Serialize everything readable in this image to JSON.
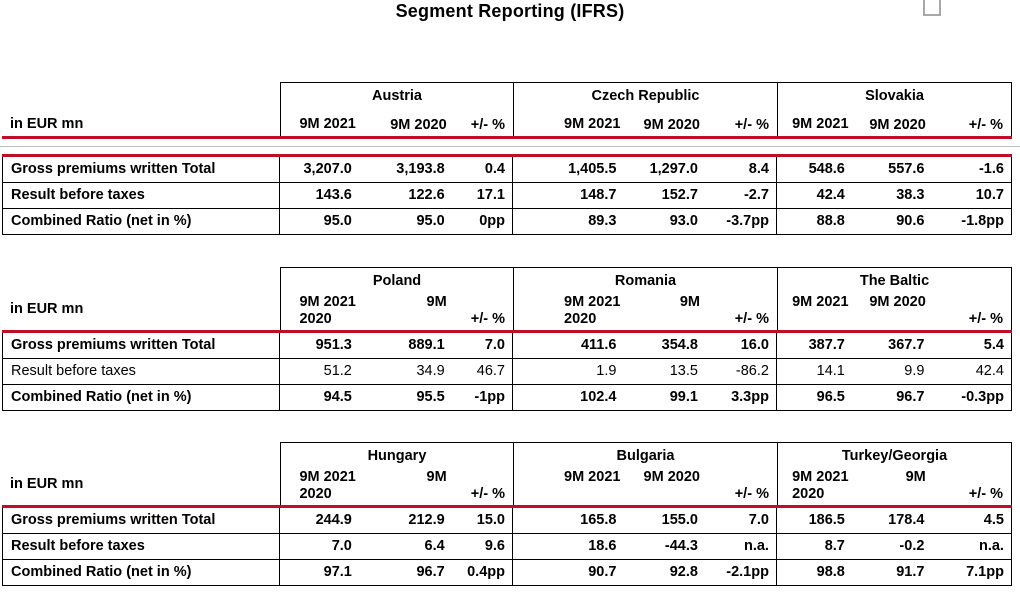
{
  "page": {
    "title": "Segment Reporting (IFRS)",
    "unit_label": "in EUR mn"
  },
  "row_labels": [
    "Gross premiums written Total",
    "Result before taxes",
    "Combined Ratio (net in %)"
  ],
  "tables": [
    {
      "groups": [
        {
          "name": "Austria",
          "p1": "9M 2021",
          "p1b": "",
          "p2": "9M 2020",
          "p3": "+/- %",
          "rows": [
            [
              "3,207.0",
              "3,193.8",
              "0.4"
            ],
            [
              "143.6",
              "122.6",
              "17.1"
            ],
            [
              "95.0",
              "95.0",
              "0pp"
            ]
          ]
        },
        {
          "name": "Czech Republic",
          "p1": "9M 2021",
          "p1b": "",
          "p2": "9M 2020",
          "p3": "+/- %",
          "rows": [
            [
              "1,405.5",
              "1,297.0",
              "8.4"
            ],
            [
              "148.7",
              "152.7",
              "-2.7"
            ],
            [
              "89.3",
              "93.0",
              "-3.7pp"
            ]
          ]
        },
        {
          "name": "Slovakia",
          "p1": "9M 2021",
          "p1b": "",
          "p2": "9M 2020",
          "p3": "+/- %",
          "rows": [
            [
              "548.6",
              "557.6",
              "-1.6"
            ],
            [
              "42.4",
              "38.3",
              "10.7"
            ],
            [
              "88.8",
              "90.6",
              "-1.8pp"
            ]
          ]
        }
      ]
    },
    {
      "groups": [
        {
          "name": "Poland",
          "p1": "9M 2021",
          "p1b": "2020",
          "p2": "9M",
          "p3": "+/- %",
          "rows": [
            [
              "951.3",
              "889.1",
              "7.0"
            ],
            [
              "51.2",
              "34.9",
              "46.7"
            ],
            [
              "94.5",
              "95.5",
              "-1pp"
            ]
          ]
        },
        {
          "name": "Romania",
          "p1": "9M 2021",
          "p1b": "2020",
          "p2": "9M",
          "p3": "+/- %",
          "rows": [
            [
              "411.6",
              "354.8",
              "16.0"
            ],
            [
              "1.9",
              "13.5",
              "-86.2"
            ],
            [
              "102.4",
              "99.1",
              "3.3pp"
            ]
          ]
        },
        {
          "name": "The Baltic",
          "p1": "9M 2021",
          "p1b": "",
          "p2": "9M 2020",
          "p3": "+/- %",
          "rows": [
            [
              "387.7",
              "367.7",
              "5.4"
            ],
            [
              "14.1",
              "9.9",
              "42.4"
            ],
            [
              "96.5",
              "96.7",
              "-0.3pp"
            ]
          ]
        }
      ]
    },
    {
      "groups": [
        {
          "name": "Hungary",
          "p1": "9M 2021",
          "p1b": "2020",
          "p2": "9M",
          "p3": "+/- %",
          "rows": [
            [
              "244.9",
              "212.9",
              "15.0"
            ],
            [
              "7.0",
              "6.4",
              "9.6"
            ],
            [
              "97.1",
              "96.7",
              "0.4pp"
            ]
          ]
        },
        {
          "name": "Bulgaria",
          "p1": "9M 2021",
          "p1b": "",
          "p2": "9M 2020",
          "p3": "+/- %",
          "rows": [
            [
              "165.8",
              "155.0",
              "7.0"
            ],
            [
              "18.6",
              "-44.3",
              "n.a."
            ],
            [
              "90.7",
              "92.8",
              "-2.1pp"
            ]
          ]
        },
        {
          "name": "Turkey/Georgia",
          "p1": "9M 2021",
          "p1b": "2020",
          "p2": "9M",
          "p3": "+/- %",
          "rows": [
            [
              "186.5",
              "178.4",
              "4.5"
            ],
            [
              "8.7",
              "-0.2",
              "n.a."
            ],
            [
              "98.8",
              "91.7",
              "7.1pp"
            ]
          ]
        }
      ]
    }
  ],
  "colors": {
    "accent_red": "#c00e28",
    "divider_gray": "#bdbdbd"
  }
}
